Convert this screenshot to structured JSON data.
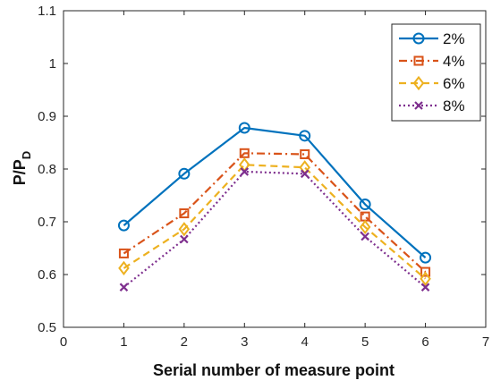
{
  "chart_data": {
    "type": "line",
    "title": "",
    "xlabel": "Serial number of measure point",
    "ylabel": "P/P",
    "ylabel_subscript": "D",
    "xlim": [
      0,
      7
    ],
    "ylim": [
      0.5,
      1.1
    ],
    "x_ticks": [
      "0",
      "1",
      "2",
      "3",
      "4",
      "5",
      "6",
      "7"
    ],
    "y_ticks": [
      "0.5",
      "0.6",
      "0.7",
      "0.8",
      "0.9",
      "1",
      "1.1"
    ],
    "grid": false,
    "legend_position": "top-right",
    "x": [
      1,
      2,
      3,
      4,
      5,
      6
    ],
    "series": [
      {
        "name": "2%",
        "values": [
          0.693,
          0.791,
          0.878,
          0.863,
          0.733,
          0.632
        ],
        "color": "#0072BD",
        "line_style": "solid",
        "marker": "circle"
      },
      {
        "name": "4%",
        "values": [
          0.64,
          0.716,
          0.83,
          0.828,
          0.71,
          0.605
        ],
        "color": "#D95319",
        "line_style": "dash-dot",
        "marker": "square"
      },
      {
        "name": "6%",
        "values": [
          0.612,
          0.686,
          0.808,
          0.803,
          0.69,
          0.592
        ],
        "color": "#EDB120",
        "line_style": "dashed",
        "marker": "diamond"
      },
      {
        "name": "8%",
        "values": [
          0.576,
          0.667,
          0.795,
          0.791,
          0.672,
          0.576
        ],
        "color": "#7E2F8E",
        "line_style": "dotted",
        "marker": "x"
      }
    ]
  }
}
